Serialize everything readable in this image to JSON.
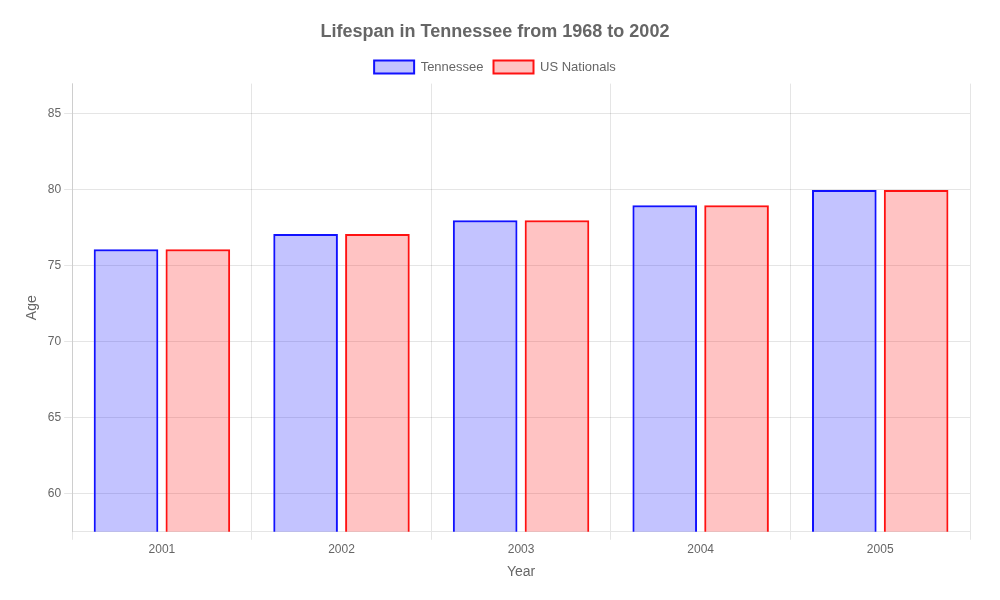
{
  "chart_data": {
    "type": "bar",
    "title": "Lifespan in Tennessee from 1968 to 2002",
    "xlabel": "Year",
    "ylabel": "Age",
    "categories": [
      "2001",
      "2002",
      "2003",
      "2004",
      "2005"
    ],
    "series": [
      {
        "name": "Tennessee",
        "color": "#1111ff",
        "values": [
          76.1,
          77.1,
          78.0,
          79.0,
          80.0
        ]
      },
      {
        "name": "US Nationals",
        "color": "#ff1111",
        "values": [
          76.1,
          77.1,
          78.0,
          79.0,
          80.0
        ]
      }
    ],
    "ylim": [
      57.5,
      87
    ],
    "yticks": [
      60,
      65,
      70,
      75,
      80,
      85
    ],
    "grid": true,
    "legend": "top"
  }
}
